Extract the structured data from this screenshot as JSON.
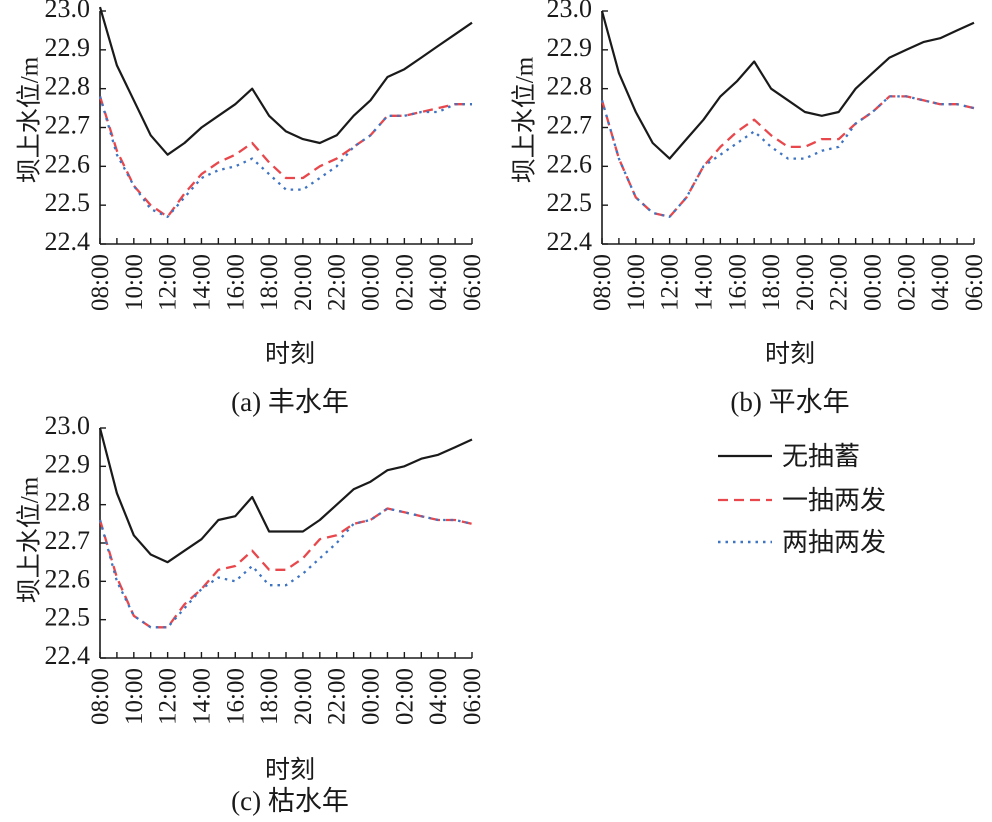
{
  "legend": [
    {
      "label": "无抽蓄",
      "color": "#1a1a1a",
      "dash": "solid"
    },
    {
      "label": "一抽两发",
      "color": "#e8474b",
      "dash": "dashed"
    },
    {
      "label": "两抽两发",
      "color": "#3f74c2",
      "dash": "dotted"
    }
  ],
  "chart_data": [
    {
      "type": "line",
      "caption": "(a) 丰水年",
      "xlabel": "时刻",
      "ylabel": "坝上水位/m",
      "ylim": [
        22.4,
        23.0
      ],
      "yticks": [
        "22.4",
        "22.5",
        "22.6",
        "22.7",
        "22.8",
        "22.9",
        "23.0"
      ],
      "x": [
        "08:00",
        "09:00",
        "10:00",
        "11:00",
        "12:00",
        "13:00",
        "14:00",
        "15:00",
        "16:00",
        "17:00",
        "18:00",
        "19:00",
        "20:00",
        "21:00",
        "22:00",
        "23:00",
        "00:00",
        "01:00",
        "02:00",
        "03:00",
        "04:00",
        "05:00",
        "06:00"
      ],
      "xticks": [
        "08:00",
        "10:00",
        "12:00",
        "14:00",
        "16:00",
        "18:00",
        "20:00",
        "22:00",
        "00:00",
        "02:00",
        "04:00",
        "06:00"
      ],
      "series": [
        {
          "name": "无抽蓄",
          "values": [
            23.01,
            22.86,
            22.77,
            22.68,
            22.63,
            22.66,
            22.7,
            22.73,
            22.76,
            22.8,
            22.73,
            22.69,
            22.67,
            22.66,
            22.68,
            22.73,
            22.77,
            22.83,
            22.85,
            22.88,
            22.91,
            22.94,
            22.97
          ]
        },
        {
          "name": "一抽两发",
          "values": [
            22.78,
            22.64,
            22.55,
            22.5,
            22.47,
            22.53,
            22.58,
            22.61,
            22.63,
            22.66,
            22.61,
            22.57,
            22.57,
            22.6,
            22.62,
            22.65,
            22.68,
            22.73,
            22.73,
            22.74,
            22.75,
            22.76,
            22.76
          ]
        },
        {
          "name": "两抽两发",
          "values": [
            22.78,
            22.63,
            22.55,
            22.49,
            22.47,
            22.52,
            22.57,
            22.59,
            22.6,
            22.62,
            22.58,
            22.54,
            22.54,
            22.57,
            22.6,
            22.65,
            22.68,
            22.73,
            22.73,
            22.74,
            22.74,
            22.76,
            22.76
          ]
        }
      ]
    },
    {
      "type": "line",
      "caption": "(b) 平水年",
      "xlabel": "时刻",
      "ylabel": "坝上水位/m",
      "ylim": [
        22.4,
        23.0
      ],
      "yticks": [
        "22.4",
        "22.5",
        "22.6",
        "22.7",
        "22.8",
        "22.9",
        "23.0"
      ],
      "x": [
        "08:00",
        "09:00",
        "10:00",
        "11:00",
        "12:00",
        "13:00",
        "14:00",
        "15:00",
        "16:00",
        "17:00",
        "18:00",
        "19:00",
        "20:00",
        "21:00",
        "22:00",
        "23:00",
        "00:00",
        "01:00",
        "02:00",
        "03:00",
        "04:00",
        "05:00",
        "06:00"
      ],
      "xticks": [
        "08:00",
        "10:00",
        "12:00",
        "14:00",
        "16:00",
        "18:00",
        "20:00",
        "22:00",
        "00:00",
        "02:00",
        "04:00",
        "06:00"
      ],
      "series": [
        {
          "name": "无抽蓄",
          "values": [
            23.0,
            22.84,
            22.74,
            22.66,
            22.62,
            22.67,
            22.72,
            22.78,
            22.82,
            22.87,
            22.8,
            22.77,
            22.74,
            22.73,
            22.74,
            22.8,
            22.84,
            22.88,
            22.9,
            22.92,
            22.93,
            22.95,
            22.97
          ]
        },
        {
          "name": "一抽两发",
          "values": [
            22.77,
            22.62,
            22.52,
            22.48,
            22.47,
            22.52,
            22.6,
            22.65,
            22.69,
            22.72,
            22.68,
            22.65,
            22.65,
            22.67,
            22.67,
            22.71,
            22.74,
            22.78,
            22.78,
            22.77,
            22.76,
            22.76,
            22.75
          ]
        },
        {
          "name": "两抽两发",
          "values": [
            22.77,
            22.62,
            22.52,
            22.48,
            22.47,
            22.52,
            22.6,
            22.63,
            22.66,
            22.69,
            22.65,
            22.62,
            22.62,
            22.64,
            22.65,
            22.71,
            22.74,
            22.78,
            22.78,
            22.77,
            22.76,
            22.76,
            22.75
          ]
        }
      ]
    },
    {
      "type": "line",
      "caption": "(c) 枯水年",
      "xlabel": "时刻",
      "ylabel": "坝上水位/m",
      "ylim": [
        22.4,
        23.0
      ],
      "yticks": [
        "22.4",
        "22.5",
        "22.6",
        "22.7",
        "22.8",
        "22.9",
        "23.0"
      ],
      "x": [
        "08:00",
        "09:00",
        "10:00",
        "11:00",
        "12:00",
        "13:00",
        "14:00",
        "15:00",
        "16:00",
        "17:00",
        "18:00",
        "19:00",
        "20:00",
        "21:00",
        "22:00",
        "23:00",
        "00:00",
        "01:00",
        "02:00",
        "03:00",
        "04:00",
        "05:00",
        "06:00"
      ],
      "xticks": [
        "08:00",
        "10:00",
        "12:00",
        "14:00",
        "16:00",
        "18:00",
        "20:00",
        "22:00",
        "00:00",
        "02:00",
        "04:00",
        "06:00"
      ],
      "series": [
        {
          "name": "无抽蓄",
          "values": [
            23.0,
            22.83,
            22.72,
            22.67,
            22.65,
            22.68,
            22.71,
            22.76,
            22.77,
            22.82,
            22.73,
            22.73,
            22.73,
            22.76,
            22.8,
            22.84,
            22.86,
            22.89,
            22.9,
            22.92,
            22.93,
            22.95,
            22.97
          ]
        },
        {
          "name": "一抽两发",
          "values": [
            22.76,
            22.61,
            22.51,
            22.48,
            22.48,
            22.54,
            22.58,
            22.63,
            22.64,
            22.68,
            22.63,
            22.63,
            22.66,
            22.71,
            22.72,
            22.75,
            22.76,
            22.79,
            22.78,
            22.77,
            22.76,
            22.76,
            22.75
          ]
        },
        {
          "name": "两抽两发",
          "values": [
            22.76,
            22.6,
            22.51,
            22.48,
            22.48,
            22.53,
            22.58,
            22.61,
            22.6,
            22.64,
            22.59,
            22.59,
            22.62,
            22.66,
            22.7,
            22.75,
            22.76,
            22.79,
            22.78,
            22.77,
            22.76,
            22.76,
            22.75
          ]
        }
      ]
    }
  ]
}
